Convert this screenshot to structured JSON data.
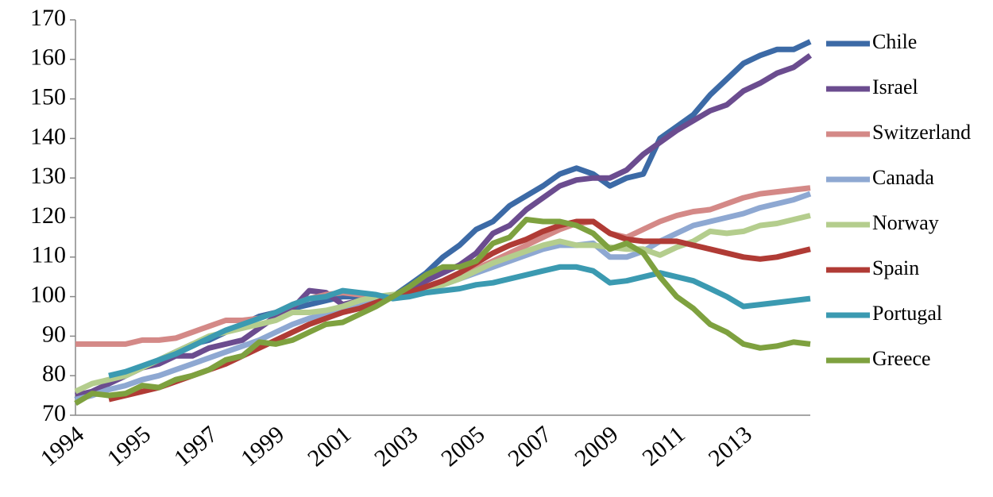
{
  "chart_data": {
    "type": "line",
    "categories": [
      "1994",
      null,
      null,
      null,
      "1995",
      null,
      null,
      null,
      "1997",
      null,
      null,
      null,
      "1999",
      null,
      null,
      null,
      "2001",
      null,
      null,
      null,
      "2003",
      null,
      null,
      null,
      "2005",
      null,
      null,
      null,
      "2007",
      null,
      null,
      null,
      "2009",
      null,
      null,
      null,
      "2011",
      null,
      null,
      null,
      "2013",
      null,
      null,
      null,
      null
    ],
    "ylim": [
      70,
      170
    ],
    "yticks": [
      70,
      80,
      90,
      100,
      110,
      120,
      130,
      140,
      150,
      160,
      170
    ],
    "legend": "right",
    "series": [
      {
        "name": "Chile",
        "color": "#3c6aa6",
        "values": [
          74,
          76,
          78,
          80,
          82,
          84,
          86,
          88,
          89,
          91,
          93,
          95,
          96,
          97,
          98,
          99,
          100,
          100,
          100,
          100,
          103,
          106,
          110,
          113,
          117,
          119,
          123,
          125.5,
          128,
          131,
          132.5,
          131,
          128,
          130,
          131,
          140,
          143,
          146,
          151,
          155,
          159,
          161,
          162.5,
          162.5,
          164.5
        ]
      },
      {
        "name": "Israel",
        "color": "#6b4c8f",
        "values": [
          75,
          76,
          78,
          80,
          82,
          83,
          85,
          85,
          87,
          88,
          89,
          92,
          95,
          97,
          101.5,
          101,
          98,
          99,
          100,
          100,
          102,
          104,
          106,
          108,
          111,
          116,
          118,
          122,
          125,
          128,
          129.5,
          130,
          130,
          132,
          136,
          139,
          142,
          144.5,
          147,
          148.5,
          152,
          154,
          156.5,
          158,
          161
        ]
      },
      {
        "name": "Switzerland",
        "color": "#d48987",
        "values": [
          88,
          88,
          88,
          88,
          89,
          89,
          89.5,
          91,
          92.5,
          94,
          94,
          94.5,
          96,
          98,
          99.5,
          100.5,
          101,
          100.5,
          100,
          100,
          100.5,
          102,
          103.5,
          105,
          107,
          109,
          111,
          113,
          115,
          117,
          118.5,
          119,
          116,
          115,
          117,
          119,
          120.5,
          121.5,
          122,
          123.5,
          125,
          126,
          126.5,
          127,
          127.5
        ]
      },
      {
        "name": "Canada",
        "color": "#8ea8d2",
        "values": [
          74,
          75,
          76.5,
          77.5,
          79,
          80,
          81.5,
          83,
          84.5,
          86,
          87.5,
          89,
          91,
          93,
          94.5,
          95.5,
          96.5,
          97.5,
          99,
          100,
          101,
          102,
          103,
          104.5,
          106,
          107.5,
          109,
          110.5,
          112,
          113,
          113,
          113.5,
          110,
          110,
          111.5,
          114,
          116,
          118,
          119,
          120,
          121,
          122.5,
          123.5,
          124.5,
          126
        ]
      },
      {
        "name": "Norway",
        "color": "#b4cd8d",
        "values": [
          76,
          78,
          79,
          80,
          82,
          84,
          86,
          88,
          90,
          91,
          92,
          93,
          94,
          96,
          96,
          96.5,
          97.5,
          99,
          100,
          100.5,
          101,
          102,
          103,
          104.5,
          106.5,
          108.5,
          110,
          111.5,
          113,
          114,
          113,
          113,
          112.5,
          112,
          112,
          110.5,
          112.5,
          114,
          116.5,
          116,
          116.5,
          118,
          118.5,
          119.5,
          120.5
        ]
      },
      {
        "name": "Spain",
        "color": "#b03b35",
        "values": [
          null,
          null,
          74,
          75,
          76,
          77,
          78.5,
          80,
          81.5,
          83,
          85,
          87,
          89,
          91,
          93,
          94.5,
          96,
          97,
          98.5,
          100,
          101,
          102.5,
          104,
          106,
          108.5,
          111,
          113,
          114.5,
          116.5,
          118,
          119,
          119,
          116,
          114.5,
          114,
          114,
          114,
          113,
          112,
          111,
          110,
          109.5,
          110,
          111,
          112
        ]
      },
      {
        "name": "Portugal",
        "color": "#3b9ab1",
        "values": [
          null,
          null,
          80,
          81,
          82.5,
          84,
          85.5,
          87.5,
          89.5,
          91.5,
          93,
          94.5,
          96,
          98,
          99.5,
          100,
          101.5,
          101,
          100.5,
          99.5,
          100,
          101,
          101.5,
          102,
          103,
          103.5,
          104.5,
          105.5,
          106.5,
          107.5,
          107.5,
          106.5,
          103.5,
          104,
          105,
          106,
          105,
          104,
          102,
          100,
          97.5,
          98,
          98.5,
          99,
          99.5
        ]
      },
      {
        "name": "Greece",
        "color": "#7ea13f",
        "values": [
          73,
          75.5,
          75,
          75.5,
          77.5,
          77,
          79,
          80,
          81.5,
          84,
          85,
          88.5,
          88,
          89,
          91,
          93,
          93.5,
          95.5,
          97.5,
          100,
          102.5,
          105.5,
          107.5,
          107.5,
          109,
          113.5,
          115,
          119.5,
          119,
          119,
          118,
          116,
          112,
          113.5,
          111,
          105,
          100,
          97,
          93,
          91,
          88,
          87,
          87.5,
          88.5,
          88
        ]
      }
    ]
  }
}
